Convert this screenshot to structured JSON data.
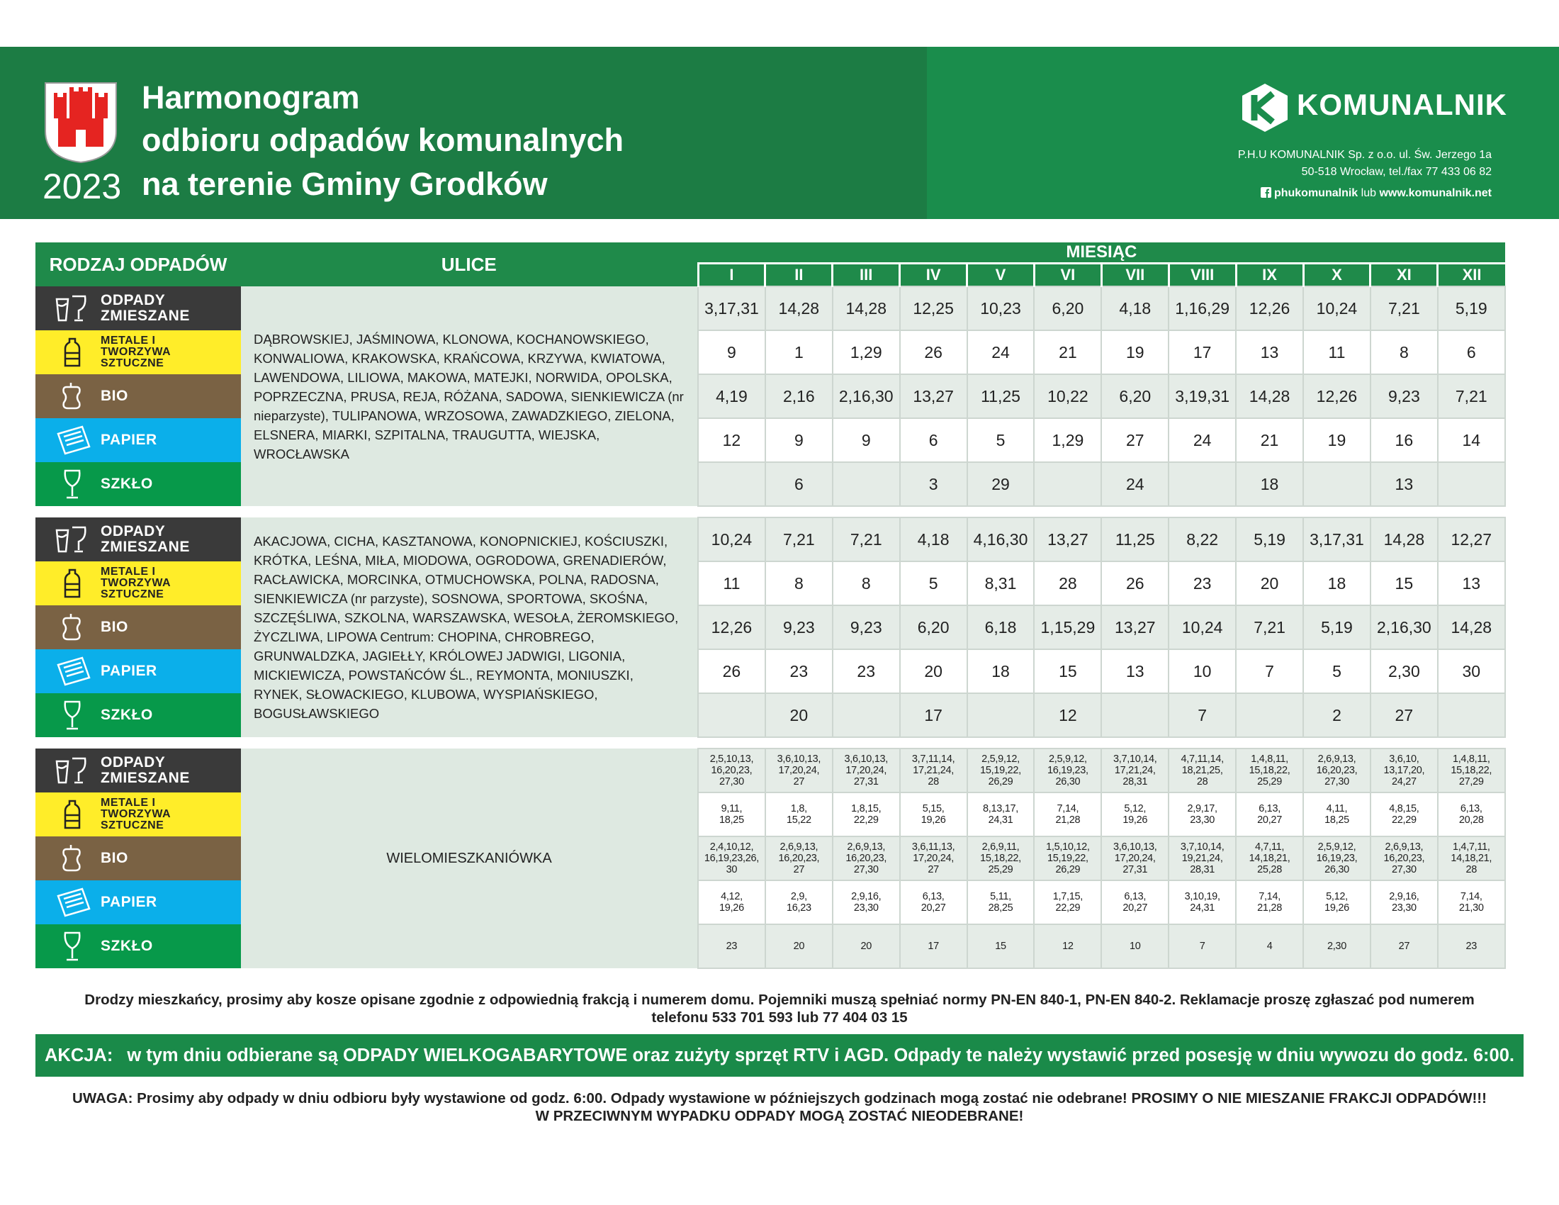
{
  "header": {
    "title": [
      "Harmonogram",
      "odbioru odpadów komunalnych",
      "na terenie Gminy Grodków"
    ],
    "year": "2023",
    "company": {
      "brand": "KOMUNALNIK",
      "address": [
        "P.H.U KOMUNALNIK Sp. z o.o. ul. Św. Jerzego 1a",
        "50-518 Wrocław, tel./fax 77 433 06 82"
      ],
      "social": "phukomunalnik",
      "social_joiner": "lub",
      "website": "www.komunalnik.net"
    }
  },
  "table": {
    "headers": {
      "waste_type": "RODZAJ ODPADÓW",
      "streets": "ULICE",
      "month": "MIESIĄC"
    },
    "months": [
      "I",
      "II",
      "III",
      "IV",
      "V",
      "VI",
      "VII",
      "VIII",
      "IX",
      "X",
      "XI",
      "XII"
    ],
    "waste_types": [
      "ODPADY ZMIESZANE",
      "METALE I TWORZYWA SZTUCZNE",
      "BIO",
      "PAPIER",
      "SZKŁO"
    ],
    "sections": [
      {
        "streets": "DĄBROWSKIEJ, JAŚMINOWA, KLONOWA, KOCHANOWSKIEGO, KONWALIOWA, KRAKOWSKA, KRAŃCOWA, KRZYWA, KWIATOWA, LAWENDOWA, LILIOWA, MAKOWA, MATEJKI, NORWIDA, OPOLSKA, POPRZECZNA, PRUSA, REJA, RÓŻANA, SADOWA, SIENKIEWICZA (nr nieparzyste), TULIPANOWA, WRZOSOWA, ZAWADZKIEGO, ZIELONA, ELSNERA, MIARKI, SZPITALNA, TRAUGUTTA, WIEJSKA, WROCŁAWSKA",
        "rows": [
          [
            "3,17,31",
            "14,28",
            "14,28",
            "12,25",
            "10,23",
            "6,20",
            "4,18",
            "1,16,29",
            "12,26",
            "10,24",
            "7,21",
            "5,19"
          ],
          [
            "9",
            "1",
            "1,29",
            "26",
            "24",
            "21",
            "19",
            "17",
            "13",
            "11",
            "8",
            "6"
          ],
          [
            "4,19",
            "2,16",
            "2,16,30",
            "13,27",
            "11,25",
            "10,22",
            "6,20",
            "3,19,31",
            "14,28",
            "12,26",
            "9,23",
            "7,21"
          ],
          [
            "12",
            "9",
            "9",
            "6",
            "5",
            "1,29",
            "27",
            "24",
            "21",
            "19",
            "16",
            "14"
          ],
          [
            null,
            "6",
            null,
            "3",
            "29",
            null,
            "24",
            null,
            "18",
            null,
            "13",
            null
          ]
        ]
      },
      {
        "streets": "AKACJOWA, CICHA, KASZTANOWA, KONOPNICKIEJ, KOŚCIUSZKI, KRÓTKA, LEŚNA, MIŁA, MIODOWA, OGRODOWA, GRENADIERÓW, RACŁAWICKA, MORCINKA, OTMUCHOWSKA, POLNA, RADOSNA, SIENKIEWICZA (nr parzyste), SOSNOWA, SPORTOWA, SKOŚNA, SZCZĘŚLIWA, SZKOLNA, WARSZAWSKA, WESOŁA, ŻEROMSKIEGO, ŻYCZLIWA, LIPOWA Centrum: CHOPINA, CHROBREGO, GRUNWALDZKA, JAGIEŁŁY, KRÓLOWEJ JADWIGI, LIGONIA, MICKIEWICZA, POWSTAŃCÓW ŚL., REYMONTA, MONIUSZKI, RYNEK, SŁOWACKIEGO, KLUBOWA, WYSPIAŃSKIEGO, BOGUSŁAWSKIEGO",
        "rows": [
          [
            "10,24",
            "7,21",
            "7,21",
            "4,18",
            "4,16,30",
            "13,27",
            "11,25",
            "8,22",
            "5,19",
            "3,17,31",
            "14,28",
            "12,27"
          ],
          [
            "11",
            "8",
            "8",
            "5",
            "8,31",
            "28",
            "26",
            "23",
            "20",
            "18",
            "15",
            "13"
          ],
          [
            "12,26",
            "9,23",
            "9,23",
            "6,20",
            "6,18",
            "1,15,29",
            "13,27",
            "10,24",
            "7,21",
            "5,19",
            "2,16,30",
            "14,28"
          ],
          [
            "26",
            "23",
            "23",
            "20",
            "18",
            "15",
            "13",
            "10",
            "7",
            "5",
            "2,30",
            "30"
          ],
          [
            null,
            "20",
            null,
            "17",
            null,
            "12",
            null,
            "7",
            null,
            "2",
            "27",
            null
          ]
        ]
      },
      {
        "streets": "WIELOMIESZKANIÓWKA",
        "rows": [
          [
            "2,5,10,13,\n16,20,23,\n27,30",
            "3,6,10,13,\n17,20,24,\n27",
            "3,6,10,13,\n17,20,24,\n27,31",
            "3,7,11,14,\n17,21,24,\n28",
            "2,5,9,12,\n15,19,22,\n26,29",
            "2,5,9,12,\n16,19,23,\n26,30",
            "3,7,10,14,\n17,21,24,\n28,31",
            "4,7,11,14,\n18,21,25,\n28",
            "1,4,8,11,\n15,18,22,\n25,29",
            "2,6,9,13,\n16,20,23,\n27,30",
            "3,6,10,\n13,17,20,\n24,27",
            "1,4,8,11,\n15,18,22,\n27,29"
          ],
          [
            "9,11,\n18,25",
            "1,8,\n15,22",
            "1,8,15,\n22,29",
            "5,15,\n19,26",
            "8,13,17,\n24,31",
            "7,14,\n21,28",
            "5,12,\n19,26",
            "2,9,17,\n23,30",
            "6,13,\n20,27",
            "4,11,\n18,25",
            "4,8,15,\n22,29",
            "6,13,\n20,28"
          ],
          [
            "2,4,10,12,\n16,19,23,26,\n30",
            "2,6,9,13,\n16,20,23,\n27",
            "2,6,9,13,\n16,20,23,\n27,30",
            "3,6,11,13,\n17,20,24,\n27",
            "2,6,9,11,\n15,18,22,\n25,29",
            "1,5,10,12,\n15,19,22,\n26,29",
            "3,6,10,13,\n17,20,24,\n27,31",
            "3,7,10,14,\n19,21,24,\n28,31",
            "4,7,11,\n14,18,21,\n25,28",
            "2,5,9,12,\n16,19,23,\n26,30",
            "2,6,9,13,\n16,20,23,\n27,30",
            "1,4,7,11,\n14,18,21,\n28"
          ],
          [
            "4,12,\n19,26",
            "2,9,\n16,23",
            "2,9,16,\n23,30",
            "6,13,\n20,27",
            "5,11,\n28,25",
            "1,7,15,\n22,29",
            "6,13,\n20,27",
            "3,10,19,\n24,31",
            "7,14,\n21,28",
            "5,12,\n19,26",
            "2,9,16,\n23,30",
            "7,14,\n21,30"
          ],
          [
            "23",
            "20",
            "20",
            "17",
            "15",
            "12",
            "10",
            "7",
            "4",
            "2,30",
            "27",
            "23"
          ]
        ]
      }
    ]
  },
  "footer": {
    "note": "Drodzy mieszkańcy, prosimy aby kosze opisane zgodnie z odpowiednią frakcją i numerem domu. Pojemniki muszą spełniać normy PN-EN 840-1, PN-EN 840-2. Reklamacje proszę zgłaszać pod numerem telefonu 533 701 593 lub 77 404 03 15",
    "action": {
      "label": "AKCJA:",
      "text": "w tym dniu odbierane są ODPADY WIELKOGABARYTOWE oraz zużyty sprzęt RTV i AGD. Odpady te należy wystawić przed posesję w dniu wywozu do godz. 6:00."
    },
    "warning": [
      "UWAGA: Prosimy aby odpady w dniu odbioru były wystawione od godz. 6:00. Odpady wystawione w późniejszych godzinach mogą zostać nie odebrane! PROSIMY O NIE MIESZANIE FRAKCJI ODPADÓW!!!",
      "W PRZECIWNYM WYPADKU ODPADY MOGĄ ZOSTAĆ NIEODEBRANE!"
    ]
  }
}
